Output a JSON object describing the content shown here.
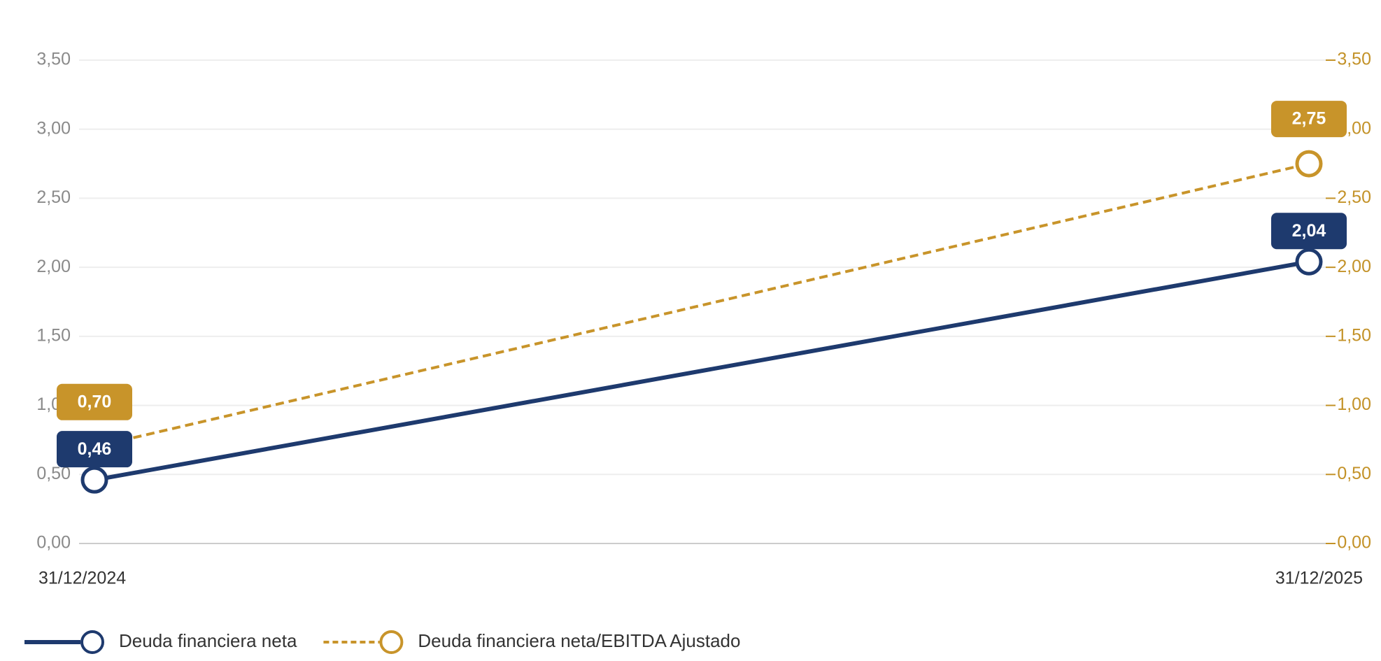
{
  "chart_data": {
    "type": "line",
    "x": [
      "31/12/2024",
      "31/12/2025"
    ],
    "series": [
      {
        "name": "Deuda financiera neta",
        "color": "#1e3a6e",
        "values": [
          0.46,
          2.04
        ],
        "value_labels": [
          "0,46",
          "2,04"
        ]
      },
      {
        "name": "Deuda financiera neta/EBITDA Ajustado",
        "color": "#c8942a",
        "axis": "y2",
        "dashed": true,
        "values": [
          0.7,
          2.75
        ],
        "value_labels": [
          "0,70",
          "2,75"
        ]
      }
    ],
    "ylim": [
      0,
      3.5
    ],
    "yticks": [
      {
        "value": 0,
        "label": "0,00"
      },
      {
        "value": 0.5,
        "label": "0,50"
      },
      {
        "value": 1,
        "label": "1,00"
      },
      {
        "value": 1.5,
        "label": "1,50"
      },
      {
        "value": 2,
        "label": "2,00"
      },
      {
        "value": 2.5,
        "label": "2,50"
      },
      {
        "value": 3,
        "label": "3,00"
      },
      {
        "value": 3.5,
        "label": "3,50"
      }
    ],
    "y2lim": [
      0,
      3.5
    ],
    "y2ticks": [
      {
        "value": 0,
        "label": "0,00"
      },
      {
        "value": 0.5,
        "label": "0,50"
      },
      {
        "value": 1,
        "label": "1,00"
      },
      {
        "value": 1.5,
        "label": "1,50"
      },
      {
        "value": 2,
        "label": "2,00"
      },
      {
        "value": 2.5,
        "label": "2,50"
      },
      {
        "value": 3,
        "label": "3,00"
      },
      {
        "value": 3.5,
        "label": "3,50"
      }
    ],
    "grid": true
  }
}
